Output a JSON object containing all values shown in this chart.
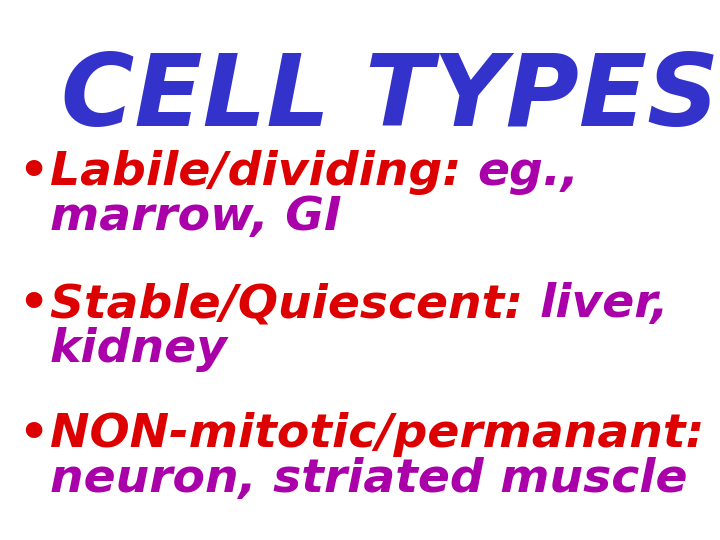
{
  "title": "CELL TYPES",
  "title_color": "#3333cc",
  "title_fontsize": 72,
  "background_color": "#ffffff",
  "red_color": "#dd0000",
  "purple_color": "#aa00aa",
  "bullet_fontsize": 34,
  "figsize": [
    7.2,
    5.4
  ],
  "dpi": 100,
  "bullets": [
    {
      "label": "Labile/dividing: ",
      "example_line1": "eg.,",
      "example_line2": "marrow, GI"
    },
    {
      "label": "Stable/Quiescent: ",
      "example_line1": "liver,",
      "example_line2": "kidney"
    },
    {
      "label": "NON-mitotic/permanant: ",
      "example_line1": "",
      "example_line2": "neuron, striated muscle"
    }
  ]
}
